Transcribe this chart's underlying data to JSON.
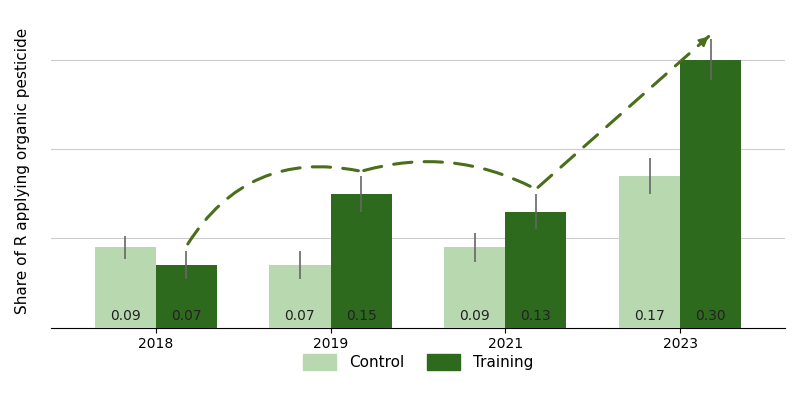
{
  "years": [
    "2018",
    "2019",
    "2021",
    "2023"
  ],
  "control_values": [
    0.09,
    0.07,
    0.09,
    0.17
  ],
  "training_values": [
    0.07,
    0.15,
    0.13,
    0.3
  ],
  "control_errors": [
    0.013,
    0.016,
    0.016,
    0.02
  ],
  "training_errors": [
    0.016,
    0.02,
    0.02,
    0.023
  ],
  "control_color": "#b8d9b0",
  "training_color": "#2d6a1e",
  "bar_width": 0.35,
  "ylabel": "Share of R applying organic pesticide",
  "ylim": [
    0,
    0.35
  ],
  "background_color": "#ffffff",
  "grid_color": "#cccccc",
  "label_fontsize": 10,
  "tick_fontsize": 10,
  "ylabel_fontsize": 11,
  "dashed_line_color": "#4a6e1a",
  "legend_labels": [
    "Control",
    "Training"
  ],
  "dashed_line_points_x": [
    0.175,
    1.0,
    1.175,
    2.175,
    2.175,
    3.175
  ],
  "dashed_line_points_y": [
    0.075,
    0.245,
    0.17,
    0.205,
    0.205,
    0.323
  ]
}
